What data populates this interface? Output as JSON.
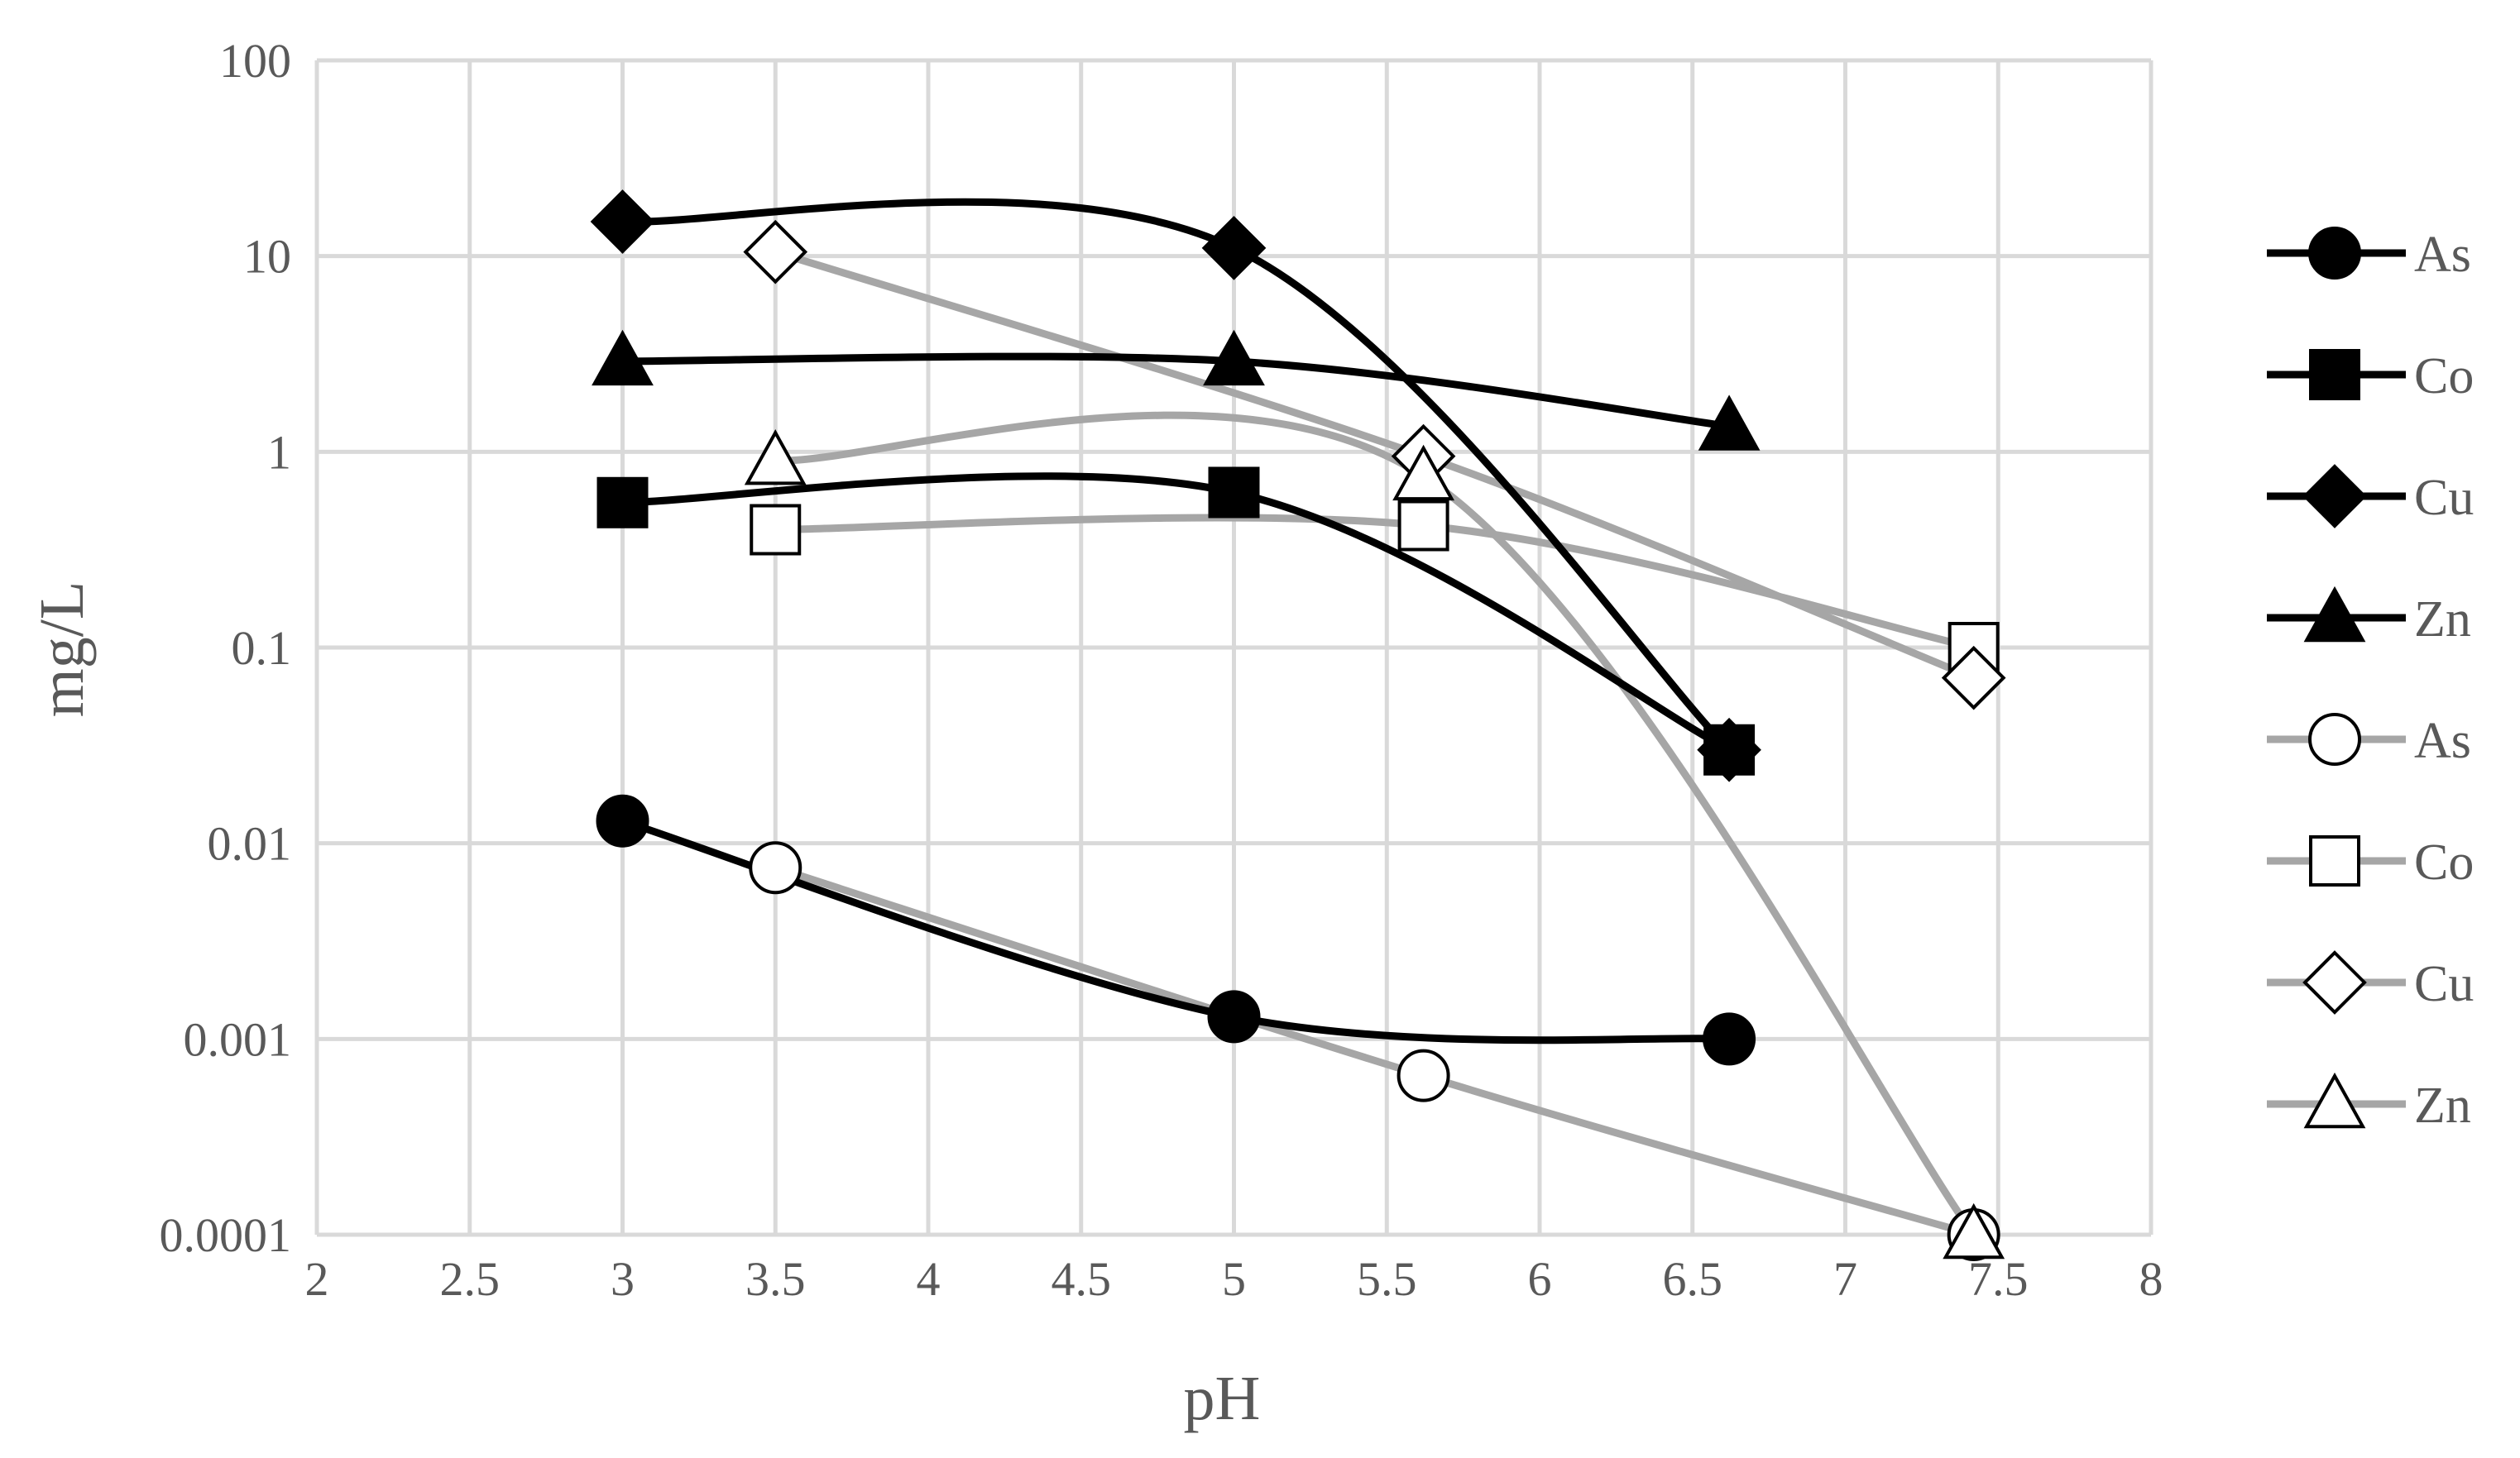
{
  "chart_data": {
    "type": "scatter",
    "xlabel": "pH",
    "ylabel": "mg/L",
    "xlim": [
      2,
      8
    ],
    "x_ticks": [
      "2",
      "2.5",
      "3",
      "3.5",
      "4",
      "4.5",
      "5",
      "5.5",
      "6",
      "6.5",
      "7",
      "7.5",
      "8"
    ],
    "y_scale": "log",
    "ylim": [
      0.0001,
      100
    ],
    "y_ticks": [
      "0.0001",
      "0.001",
      "0.01",
      "0.1",
      "1",
      "10",
      "100"
    ],
    "grid": true,
    "legend_position": "right",
    "smoothed_lines": true,
    "series": [
      {
        "name": "As",
        "color": "#000000",
        "marker": "circle",
        "filled": true,
        "x": [
          3.0,
          5.0,
          6.62
        ],
        "y": [
          0.013,
          0.0013,
          0.001
        ]
      },
      {
        "name": "Co",
        "color": "#000000",
        "marker": "square",
        "filled": true,
        "x": [
          3.0,
          5.0,
          6.62
        ],
        "y": [
          0.55,
          0.62,
          0.03
        ]
      },
      {
        "name": "Cu",
        "color": "#000000",
        "marker": "diamond",
        "filled": true,
        "x": [
          3.0,
          5.0,
          6.62
        ],
        "y": [
          15,
          11,
          0.03
        ]
      },
      {
        "name": "Zn",
        "color": "#000000",
        "marker": "triangle",
        "filled": true,
        "x": [
          3.0,
          5.0,
          6.62
        ],
        "y": [
          2.9,
          2.9,
          1.35
        ]
      },
      {
        "name": "As",
        "color": "#a6a6a6",
        "marker": "circle",
        "filled": false,
        "x": [
          3.5,
          5.62,
          7.42
        ],
        "y": [
          0.0075,
          0.00065,
          0.0001
        ]
      },
      {
        "name": "Co",
        "color": "#a6a6a6",
        "marker": "square",
        "filled": false,
        "x": [
          3.5,
          5.62,
          7.42
        ],
        "y": [
          0.4,
          0.42,
          0.1
        ]
      },
      {
        "name": "Cu",
        "color": "#a6a6a6",
        "marker": "diamond",
        "filled": false,
        "x": [
          3.5,
          5.62,
          7.42
        ],
        "y": [
          10.5,
          0.95,
          0.07
        ]
      },
      {
        "name": "Zn",
        "color": "#a6a6a6",
        "marker": "triangle",
        "filled": false,
        "x": [
          3.5,
          5.62,
          7.42
        ],
        "y": [
          0.9,
          0.75,
          0.0001
        ]
      }
    ]
  }
}
